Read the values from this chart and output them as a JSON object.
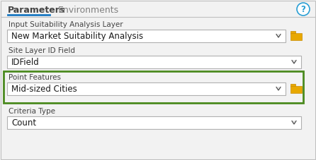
{
  "bg_color": "#f2f2f2",
  "panel_bg": "#f2f2f2",
  "white": "#ffffff",
  "tab_active": "Parameters",
  "tab_inactive": "Environments",
  "tab_underline_color": "#1a78c2",
  "tab_text_color": "#444444",
  "help_icon_color": "#2b9fd4",
  "help_border_color": "#2b9fd4",
  "label_color": "#444444",
  "label_fontsize": 7.5,
  "value_fontsize": 8.5,
  "field1_label": "Input Suitability Analysis Layer",
  "field1_value": "New Market Suitability Analysis",
  "field1_has_folder": true,
  "field2_label": "Site Layer ID Field",
  "field2_value": "IDField",
  "field2_has_folder": false,
  "field3_label": "Point Features",
  "field3_value": "Mid-sized Cities",
  "field3_has_folder": true,
  "field3_highlight": true,
  "field3_border_color": "#4a8a1e",
  "field4_label": "Criteria Type",
  "field4_value": "Count",
  "field4_has_folder": false,
  "dropdown_border": "#b0b0b0",
  "dropdown_arrow_color": "#555555",
  "folder_color": "#e8a800",
  "folder_edge_color": "#c88a00",
  "outer_border_color": "#c0c0c0",
  "separator_color": "#d0d0d0",
  "tab_sep_color": "#c0c0c0"
}
